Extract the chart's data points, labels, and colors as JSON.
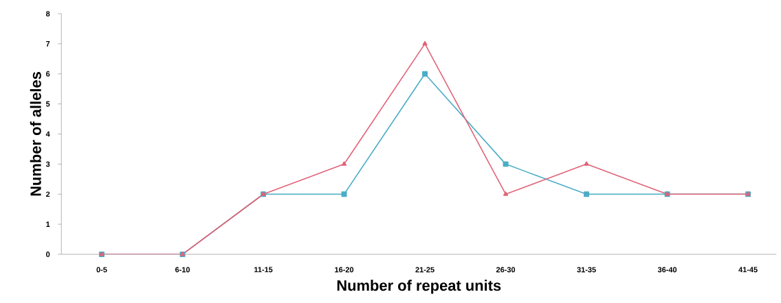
{
  "chart_data": {
    "type": "line",
    "xlabel": "Number of repeat units",
    "ylabel": "Number of alleles",
    "categories": [
      "0-5",
      "6-10",
      "11-15",
      "16-20",
      "21-25",
      "26-30",
      "31-35",
      "36-40",
      "41-45"
    ],
    "ylim": [
      0,
      8
    ],
    "yticks": [
      0,
      1,
      2,
      3,
      4,
      5,
      6,
      7,
      8
    ],
    "grid": false,
    "line_style": "solid",
    "series": [
      {
        "color": "#4bacc6",
        "marker": "square",
        "values": [
          0,
          0,
          2,
          2,
          6,
          3,
          2,
          2,
          2
        ]
      },
      {
        "color": "#e06377",
        "marker": "triangle",
        "values": [
          0,
          0,
          2,
          3,
          7,
          2,
          3,
          2,
          2
        ]
      }
    ]
  }
}
